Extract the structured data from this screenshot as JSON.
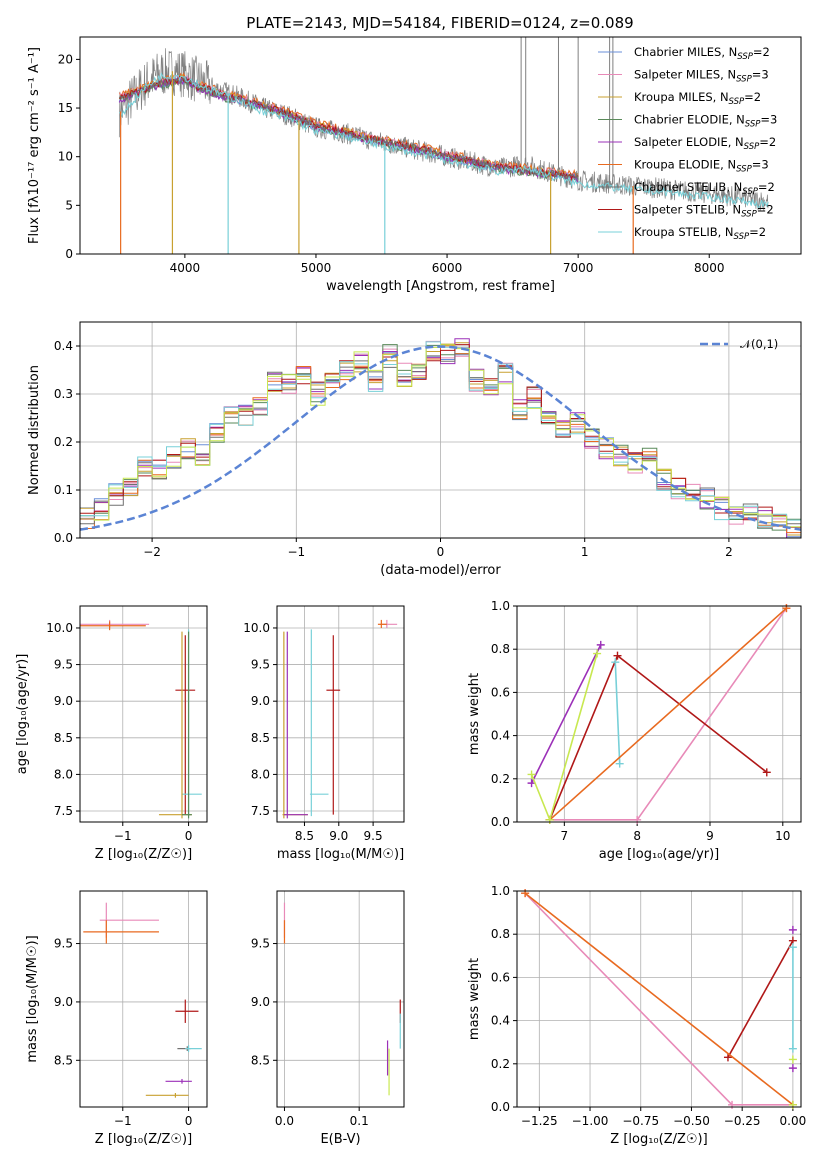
{
  "colors": {
    "Chabrier MILES": "#6a8fd8",
    "Salpeter MILES": "#e88ab8",
    "Kroupa MILES": "#c8a030",
    "Chabrier ELODIE": "#5a8a5a",
    "Salpeter ELODIE": "#9b30b8",
    "Kroupa ELODIE": "#e86a20",
    "Chabrier STELIB": "#707070",
    "Salpeter STELIB": "#b01818",
    "Kroupa STELIB": "#78d0d8",
    "data": "#808080",
    "gaussian": "#5b84d4",
    "lime": "#c8e850"
  },
  "chart_data": [
    {
      "id": "spectrum",
      "type": "line",
      "title": "PLATE=2143, MJD=54184, FIBERID=0124, z=0.089",
      "xlabel": "wavelength [Angstrom, rest frame]",
      "ylabel": "Flux [fλ10⁻¹⁷ erg cm⁻² s⁻¹ A⁻¹]",
      "xlim": [
        3200,
        8700
      ],
      "ylim": [
        0,
        22.3
      ],
      "xticks": [
        4000,
        5000,
        6000,
        7000,
        8000
      ],
      "yticks": [
        0,
        5,
        10,
        15,
        20
      ],
      "grid": false,
      "legend": "top-right",
      "legend_entries": [
        {
          "model": "Chabrier MILES",
          "base": "Chabrier MILES, N",
          "sub": "SSP",
          "tail": "=2"
        },
        {
          "model": "Salpeter MILES",
          "base": "Salpeter MILES, N",
          "sub": "SSP",
          "tail": "=3"
        },
        {
          "model": "Kroupa MILES",
          "base": "Kroupa MILES, N",
          "sub": "SSP",
          "tail": "=2"
        },
        {
          "model": "Chabrier ELODIE",
          "base": "Chabrier ELODIE, N",
          "sub": "SSP",
          "tail": "=3"
        },
        {
          "model": "Salpeter ELODIE",
          "base": "Salpeter ELODIE, N",
          "sub": "SSP",
          "tail": "=2"
        },
        {
          "model": "Kroupa ELODIE",
          "base": "Kroupa ELODIE, N",
          "sub": "SSP",
          "tail": "=3"
        },
        {
          "model": "Chabrier STELIB",
          "base": "Chabrier STELIB, N",
          "sub": "SSP",
          "tail": "=2"
        },
        {
          "model": "Salpeter STELIB",
          "base": "Salpeter STELIB, N",
          "sub": "SSP",
          "tail": "=2"
        },
        {
          "model": "Kroupa STELIB",
          "base": "Kroupa STELIB, N",
          "sub": "SSP",
          "tail": "=2"
        }
      ],
      "continuum_data": {
        "x": [
          3500,
          3600,
          3700,
          3800,
          3900,
          4000,
          4100,
          4200,
          4300,
          4400,
          4600,
          4800,
          5000,
          5200,
          5400,
          5600,
          5800,
          6000,
          6200,
          6400,
          6600,
          6800,
          7000,
          7200,
          7400,
          7600,
          7800,
          8000,
          8200,
          8450
        ],
        "y": [
          14.5,
          16,
          17.5,
          18.5,
          18.8,
          18.5,
          17.8,
          17.2,
          16.7,
          16.2,
          15,
          14.2,
          13,
          12.5,
          11.8,
          11.2,
          10.6,
          10.0,
          9.4,
          8.8,
          9.2,
          8.3,
          7.6,
          7.3,
          7.0,
          6.8,
          6.5,
          6.2,
          5.9,
          5.4
        ]
      },
      "model_curves": {
        "x": [
          3500,
          3600,
          3700,
          3800,
          3900,
          4000,
          4100,
          4200,
          4300,
          4400,
          4600,
          4800,
          5000,
          5200,
          5400,
          5600,
          5800,
          6000,
          6200,
          6400,
          6600,
          6800,
          7000
        ],
        "y": [
          16,
          16.5,
          17,
          17.5,
          17.8,
          18,
          17.2,
          16.8,
          16.2,
          16,
          15.2,
          14.3,
          13.2,
          12.6,
          11.9,
          11.3,
          10.8,
          10.1,
          9.5,
          8.9,
          8.6,
          8.3,
          7.9
        ]
      },
      "features": {
        "lines_down": [
          3510,
          3905,
          4330,
          4870,
          5525,
          6790,
          7420
        ],
        "lines_up": [
          6565,
          6600,
          6850,
          7000,
          7240,
          7265
        ]
      }
    },
    {
      "id": "residuals",
      "type": "histogram",
      "xlabel": "(data-model)/error",
      "ylabel": "Normed distribution",
      "xlim": [
        -2.5,
        2.5
      ],
      "ylim": [
        0,
        0.45
      ],
      "xticks": [
        -2,
        -1,
        0,
        1,
        2
      ],
      "yticks": [
        0,
        0.1,
        0.2,
        0.3,
        0.4
      ],
      "grid": true,
      "legend": "top-right",
      "gaussian_label": "𝒩(0,1)",
      "bins": [
        -2.5,
        -2.4,
        -2.3,
        -2.2,
        -2.1,
        -2.0,
        -1.9,
        -1.8,
        -1.7,
        -1.6,
        -1.5,
        -1.4,
        -1.3,
        -1.2,
        -1.1,
        -1.0,
        -0.9,
        -0.8,
        -0.7,
        -0.6,
        -0.5,
        -0.4,
        -0.3,
        -0.2,
        -0.1,
        0.0,
        0.1,
        0.2,
        0.3,
        0.4,
        0.5,
        0.6,
        0.7,
        0.8,
        0.9,
        1.0,
        1.1,
        1.2,
        1.3,
        1.4,
        1.5,
        1.6,
        1.7,
        1.8,
        1.9,
        2.0,
        2.1,
        2.2,
        2.3,
        2.4,
        2.5
      ],
      "reference": [
        0.04,
        0.06,
        0.09,
        0.11,
        0.15,
        0.14,
        0.17,
        0.19,
        0.17,
        0.22,
        0.25,
        0.26,
        0.28,
        0.33,
        0.32,
        0.34,
        0.3,
        0.33,
        0.35,
        0.37,
        0.33,
        0.38,
        0.34,
        0.35,
        0.39,
        0.38,
        0.4,
        0.33,
        0.31,
        0.34,
        0.27,
        0.29,
        0.26,
        0.23,
        0.24,
        0.21,
        0.19,
        0.17,
        0.16,
        0.17,
        0.12,
        0.1,
        0.09,
        0.08,
        0.06,
        0.05,
        0.05,
        0.04,
        0.03,
        0.02
      ]
    },
    {
      "id": "age-vs-Z",
      "type": "errorbar",
      "xlabel": "Z [log₁₀(Z/Z☉)]",
      "ylabel": "age  [log₁₀(age/yr)]",
      "xlim": [
        -1.65,
        0.28
      ],
      "ylim": [
        7.35,
        10.3
      ],
      "xticks": [
        -1,
        0
      ],
      "yticks": [
        7.5,
        8.0,
        8.5,
        9.0,
        9.5,
        10.0
      ],
      "grid": true,
      "points": [
        {
          "model": "Salpeter MILES",
          "x": -1.2,
          "y": 10.05,
          "xerr": [
            0.6,
            0.6
          ],
          "yerr": [
            0.05,
            0.06
          ]
        },
        {
          "model": "Kroupa ELODIE",
          "x": -1.2,
          "y": 10.03,
          "xerr": [
            0.5,
            0.55
          ],
          "yerr": [
            0.06,
            0.06
          ]
        },
        {
          "model": "Salpeter STELIB",
          "x": -0.05,
          "y": 9.15,
          "xerr": [
            0.15,
            0.15
          ],
          "yerr": [
            1.7,
            0.75
          ]
        },
        {
          "model": "Kroupa STELIB",
          "x": 0.0,
          "y": 7.73,
          "xerr": [
            0.1,
            0.2
          ],
          "yerr": [
            0.3,
            2.25
          ]
        },
        {
          "model": "Kroupa MILES",
          "x": -0.1,
          "y": 7.45,
          "xerr": [
            0.35,
            0.15
          ],
          "yerr": [
            0.05,
            2.5
          ]
        },
        {
          "model": "Chabrier ELODIE",
          "x": 0.0,
          "y": 7.45,
          "xerr": [
            0.1,
            0.05
          ],
          "yerr": [
            0.05,
            2.5
          ]
        }
      ]
    },
    {
      "id": "age-vs-mass",
      "type": "errorbar",
      "xlabel": "mass [log₁₀(M/M☉)]",
      "ylabel": "",
      "xlim": [
        8.1,
        9.95
      ],
      "ylim": [
        7.35,
        10.3
      ],
      "xticks": [
        8.5,
        9.0,
        9.5
      ],
      "yticks": [
        7.5,
        8.0,
        8.5,
        9.0,
        9.5,
        10.0
      ],
      "grid": true,
      "points": [
        {
          "model": "Salpeter MILES",
          "x": 9.7,
          "y": 10.05,
          "xerr": [
            0.1,
            0.15
          ],
          "yerr": [
            0.05,
            0.06
          ]
        },
        {
          "model": "Kroupa ELODIE",
          "x": 9.62,
          "y": 10.05,
          "xerr": [
            0.05,
            0.08
          ],
          "yerr": [
            0.05,
            0.06
          ]
        },
        {
          "model": "Salpeter STELIB",
          "x": 8.92,
          "y": 9.15,
          "xerr": [
            0.1,
            0.1
          ],
          "yerr": [
            1.7,
            0.75
          ]
        },
        {
          "model": "Kroupa STELIB",
          "x": 8.6,
          "y": 7.73,
          "xerr": [
            0.02,
            0.25
          ],
          "yerr": [
            0.3,
            2.25
          ]
        },
        {
          "model": "Kroupa MILES",
          "x": 8.2,
          "y": 7.45,
          "xerr": [
            0.02,
            0.35
          ],
          "yerr": [
            0.05,
            2.5
          ]
        },
        {
          "model": "Salpeter ELODIE",
          "x": 8.25,
          "y": 7.45,
          "xerr": [
            0.05,
            0.3
          ],
          "yerr": [
            0.05,
            2.5
          ]
        }
      ]
    },
    {
      "id": "weights-vs-age",
      "type": "line",
      "xlabel": "age  [log₁₀(age/yr)]",
      "ylabel": "mass weight",
      "xlim": [
        6.35,
        10.25
      ],
      "ylim": [
        0,
        1
      ],
      "xticks": [
        7,
        8,
        9,
        10
      ],
      "yticks": [
        0.0,
        0.2,
        0.4,
        0.6,
        0.8,
        1.0
      ],
      "grid": true,
      "series": [
        {
          "model": "Salpeter MILES",
          "x": [
            6.8,
            8.0,
            10.05
          ],
          "y": [
            0.01,
            0.01,
            0.99
          ]
        },
        {
          "model": "Salpeter ELODIE",
          "x": [
            6.55,
            7.5
          ],
          "y": [
            0.18,
            0.82
          ]
        },
        {
          "model": "Salpeter STELIB",
          "x": [
            6.8,
            7.73,
            9.78
          ],
          "y": [
            0.01,
            0.77,
            0.23
          ]
        },
        {
          "model": "Kroupa STELIB",
          "x": [
            7.7,
            7.76
          ],
          "y": [
            0.74,
            0.27
          ]
        },
        {
          "model": "Kroupa ELODIE",
          "x": [
            6.8,
            10.05
          ],
          "y": [
            0.01,
            0.99
          ]
        },
        {
          "model": "lime",
          "x": [
            6.55,
            6.8,
            7.45
          ],
          "y": [
            0.22,
            0.01,
            0.78
          ]
        }
      ]
    },
    {
      "id": "mass-vs-Z",
      "type": "errorbar",
      "xlabel": "Z [log₁₀(Z/Z☉)]",
      "ylabel": "mass [log₁₀(M/M☉)]",
      "xlim": [
        -1.65,
        0.28
      ],
      "ylim": [
        8.1,
        9.95
      ],
      "xticks": [
        -1,
        0
      ],
      "yticks": [
        8.5,
        9.0,
        9.5
      ],
      "grid": true,
      "points": [
        {
          "model": "Salpeter MILES",
          "x": -1.25,
          "y": 9.7,
          "xerr": [
            0.1,
            0.8
          ],
          "yerr": [
            0.15,
            0.15
          ]
        },
        {
          "model": "Kroupa ELODIE",
          "x": -1.25,
          "y": 9.6,
          "xerr": [
            0.35,
            0.8
          ],
          "yerr": [
            0.1,
            0.1
          ]
        },
        {
          "model": "Salpeter STELIB",
          "x": -0.05,
          "y": 8.92,
          "xerr": [
            0.15,
            0.2
          ],
          "yerr": [
            0.1,
            0.1
          ]
        },
        {
          "model": "Chabrier STELIB",
          "x": -0.02,
          "y": 8.6,
          "xerr": [
            0.15,
            0.05
          ],
          "yerr": [
            0.02,
            0.02
          ]
        },
        {
          "model": "Kroupa STELIB",
          "x": 0.0,
          "y": 8.6,
          "xerr": [
            0.05,
            0.2
          ],
          "yerr": [
            0.03,
            0.03
          ]
        },
        {
          "model": "Salpeter ELODIE",
          "x": -0.1,
          "y": 8.32,
          "xerr": [
            0.25,
            0.15
          ],
          "yerr": [
            0.02,
            0.02
          ]
        },
        {
          "model": "Kroupa MILES",
          "x": -0.2,
          "y": 8.2,
          "xerr": [
            0.45,
            0.2
          ],
          "yerr": [
            0.02,
            0.02
          ]
        }
      ]
    },
    {
      "id": "mass-vs-EBV",
      "type": "errorbar",
      "xlabel": "E(B-V)",
      "ylabel": "",
      "xlim": [
        -0.01,
        0.16
      ],
      "ylim": [
        8.1,
        9.95
      ],
      "xticks": [
        0.0,
        0.1
      ],
      "yticks": [
        8.5,
        9.0,
        9.5
      ],
      "grid": true,
      "points": [
        {
          "model": "Salpeter MILES",
          "x": 0.0,
          "y": 9.7,
          "xerr": [
            0,
            0
          ],
          "yerr": [
            0.15,
            0.15
          ]
        },
        {
          "model": "Kroupa ELODIE",
          "x": 0.0,
          "y": 9.6,
          "xerr": [
            0,
            0
          ],
          "yerr": [
            0.1,
            0.1
          ]
        },
        {
          "model": "Salpeter STELIB",
          "x": 0.155,
          "y": 8.92,
          "xerr": [
            0,
            0
          ],
          "yerr": [
            0.1,
            0.1
          ]
        },
        {
          "model": "Kroupa STELIB",
          "x": 0.155,
          "y": 8.75,
          "xerr": [
            0,
            0
          ],
          "yerr": [
            0.15,
            0.15
          ]
        },
        {
          "model": "Salpeter ELODIE",
          "x": 0.138,
          "y": 8.52,
          "xerr": [
            0,
            0
          ],
          "yerr": [
            0.15,
            0.15
          ]
        },
        {
          "model": "lime",
          "x": 0.14,
          "y": 8.4,
          "xerr": [
            0,
            0
          ],
          "yerr": [
            0.2,
            0.2
          ]
        }
      ]
    },
    {
      "id": "weights-vs-Z",
      "type": "line",
      "xlabel": "Z [log₁₀(Z/Z☉)]",
      "ylabel": "mass weight",
      "xlim": [
        -1.36,
        0.04
      ],
      "ylim": [
        0,
        1
      ],
      "xticks": [
        -1.25,
        -1.0,
        -0.75,
        -0.5,
        -0.25,
        0.0
      ],
      "xticklabels": [
        "−1.25",
        "−1.00",
        "−0.75",
        "−0.50",
        "−0.25",
        "0.00"
      ],
      "yticks": [
        0.0,
        0.2,
        0.4,
        0.6,
        0.8,
        1.0
      ],
      "grid": true,
      "series": [
        {
          "model": "Salpeter MILES",
          "x": [
            -1.32,
            -0.3,
            0.0
          ],
          "y": [
            0.99,
            0.01,
            0.01
          ]
        },
        {
          "model": "Salpeter STELIB",
          "x": [
            -0.32,
            0.0
          ],
          "y": [
            0.23,
            0.77
          ]
        },
        {
          "model": "Kroupa STELIB",
          "x": [
            0.0,
            0.0
          ],
          "y": [
            0.27,
            0.74
          ]
        },
        {
          "model": "Kroupa ELODIE",
          "x": [
            -1.32,
            0.0
          ],
          "y": [
            0.99,
            0.01
          ]
        }
      ],
      "markers": [
        {
          "model": "Salpeter ELODIE",
          "x": 0.0,
          "y": 0.82
        },
        {
          "model": "Salpeter ELODIE",
          "x": 0.0,
          "y": 0.18
        },
        {
          "model": "lime",
          "x": 0.0,
          "y": 0.22
        },
        {
          "model": "lime",
          "x": 0.0,
          "y": 0.01
        }
      ]
    }
  ]
}
